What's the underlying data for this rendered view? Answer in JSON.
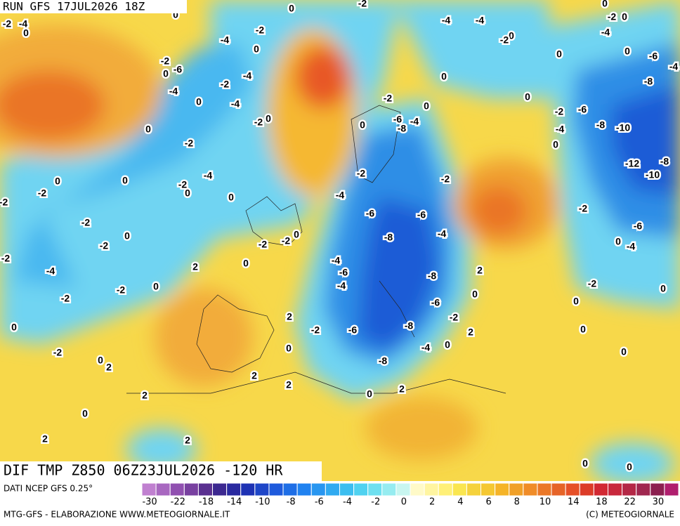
{
  "header": {
    "run": "RUN GFS 17JUL2026 18Z"
  },
  "footer": {
    "product": "DIF TMP Z850 06Z23JUL2026 -120 HR",
    "source": "DATI NCEP GFS 0.25°",
    "credit": "MTG-GFS - ELABORAZIONE WWW.METEOGIORNALE.IT",
    "copyright": "(C) METEOGIORNALE"
  },
  "legend": {
    "colors": [
      "#c080d0",
      "#a868c0",
      "#9050b0",
      "#7840a0",
      "#5a3090",
      "#3c2890",
      "#2a2aa0",
      "#1e32b4",
      "#1e46c8",
      "#1e5adc",
      "#1e6ee6",
      "#2082f0",
      "#2896f0",
      "#30aaf0",
      "#3cbef0",
      "#50d2f0",
      "#6ee0f0",
      "#96ecf0",
      "#c8f6f0",
      "#fffac8",
      "#fff5a0",
      "#fff078",
      "#fae650",
      "#f5d23c",
      "#f5c832",
      "#f5b428",
      "#f0a028",
      "#f08c28",
      "#eb7828",
      "#e66428",
      "#e65028",
      "#dc3c28",
      "#d22832",
      "#c8283c",
      "#b42846",
      "#a02850",
      "#8c2050",
      "#b01e6e"
    ],
    "ticks": [
      -30,
      -22,
      -18,
      -14,
      -10,
      -8,
      -6,
      -4,
      -2,
      0,
      2,
      4,
      6,
      8,
      10,
      14,
      18,
      22,
      30
    ]
  },
  "map": {
    "contour_labels": [
      -2,
      -4,
      0,
      0,
      0,
      -2,
      -4,
      -4,
      0,
      -2,
      0,
      -4,
      0,
      -2,
      -2,
      -4,
      0,
      -2,
      -6,
      0,
      -4,
      -2,
      -4,
      0,
      0,
      -6,
      -8,
      -4,
      0,
      0,
      0,
      -4,
      -2,
      0,
      -2,
      0,
      0,
      -6,
      -4,
      -8,
      0,
      -2,
      -6,
      -8,
      -10,
      -4,
      0,
      -2,
      -4,
      -2,
      0,
      0,
      -2,
      0,
      0,
      -2,
      -2,
      -4,
      -12,
      -8,
      -10,
      -2,
      -6,
      -6,
      -2,
      -6,
      -2,
      0,
      -4,
      -8,
      0,
      -2,
      -2,
      -2,
      0,
      -4,
      -2,
      0,
      2,
      -4,
      -6,
      -8,
      2,
      -4,
      -4,
      -2,
      0,
      0,
      -2,
      -2,
      0,
      -6,
      0,
      2,
      -2,
      -2,
      -6,
      -8,
      0,
      2,
      0,
      0,
      -4,
      0,
      -2,
      0,
      2,
      -8,
      0,
      2,
      2,
      2,
      0,
      2,
      0,
      2,
      2,
      0,
      0
    ]
  }
}
